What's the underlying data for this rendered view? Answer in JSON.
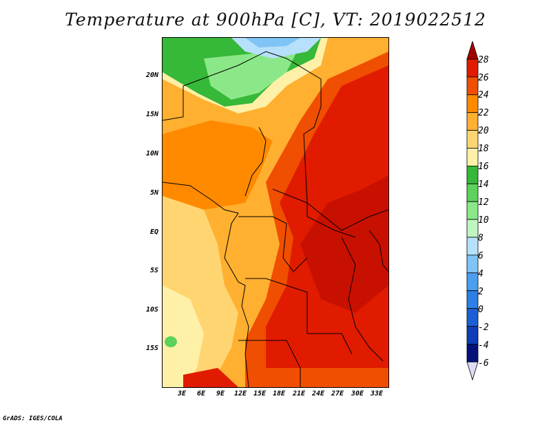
{
  "title": "Temperature at 900hPa [C], VT: 2019022512",
  "footer": "GrADS: IGES/COLA",
  "map": {
    "variable": "Temperature",
    "level": "900hPa",
    "units": "C",
    "valid_time": "2019022512",
    "lat_labels": [
      "20N",
      "15N",
      "10N",
      "5N",
      "EQ",
      "5S",
      "10S",
      "15S"
    ],
    "lon_labels": [
      "3E",
      "6E",
      "9E",
      "12E",
      "15E",
      "18E",
      "21E",
      "24E",
      "27E",
      "30E",
      "33E"
    ]
  },
  "colorbar": {
    "levels": [
      "28",
      "26",
      "24",
      "22",
      "20",
      "18",
      "16",
      "14",
      "12",
      "10",
      "8",
      "6",
      "4",
      "2",
      "0",
      "-2",
      "-4",
      "-6"
    ],
    "colors": [
      "#a50000",
      "#e01b00",
      "#f04e00",
      "#ff8a00",
      "#ffb030",
      "#ffd572",
      "#fff0a8",
      "#36b838",
      "#5cd25a",
      "#8be888",
      "#bff6bf",
      "#b6e0fb",
      "#80c4f6",
      "#4a9ff0",
      "#2b7fe6",
      "#1c5fd4",
      "#0f3db8",
      "#04127a",
      "#dcdcf6"
    ]
  }
}
